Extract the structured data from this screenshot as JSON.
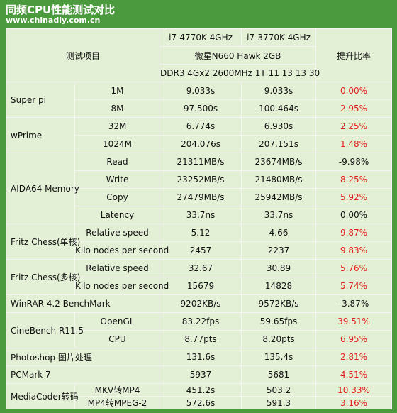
{
  "header": {
    "title": "同频CPU性能测试对比",
    "site": "www.chinadiy.com.cn"
  },
  "table": {
    "item_header": "测试项目",
    "cpu1": "i7-4770K 4GHz",
    "cpu2": "i7-3770K 4GHz",
    "gpu": "微星N660 Hawk 2GB",
    "memory": "DDR3 4Gx2 2600MHz 1T 11 13 13 30",
    "ratio_header": "提升比率",
    "groups": [
      {
        "name": "Super pi",
        "items": [
          {
            "name": "1M",
            "a": "9.033s",
            "b": "9.033s",
            "ratio": "0.00%",
            "red": true
          },
          {
            "name": "8M",
            "a": "97.500s",
            "b": "100.464s",
            "ratio": "2.95%",
            "red": true
          }
        ]
      },
      {
        "name": "wPrime",
        "items": [
          {
            "name": "32M",
            "a": "6.774s",
            "b": "6.930s",
            "ratio": "2.25%",
            "red": true
          },
          {
            "name": "1024M",
            "a": "204.076s",
            "b": "207.151s",
            "ratio": "1.48%",
            "red": true
          }
        ]
      },
      {
        "name": "AIDA64 Memory",
        "items": [
          {
            "name": "Read",
            "a": "21311MB/s",
            "b": "23674MB/s",
            "ratio": "-9.98%",
            "red": false
          },
          {
            "name": "Write",
            "a": "23252MB/s",
            "b": "21480MB/s",
            "ratio": "8.25%",
            "red": true
          },
          {
            "name": "Copy",
            "a": "27479MB/s",
            "b": "25942MB/s",
            "ratio": "5.92%",
            "red": true
          },
          {
            "name": "Latency",
            "a": "33.7ns",
            "b": "33.7ns",
            "ratio": "0.00%",
            "red": false
          }
        ]
      },
      {
        "name": "Fritz Chess(单核)",
        "items": [
          {
            "name": "Relative speed",
            "a": "5.12",
            "b": "4.66",
            "ratio": "9.87%",
            "red": true
          },
          {
            "name": "Kilo nodes per second",
            "a": "2457",
            "b": "2237",
            "ratio": "9.83%",
            "red": true
          }
        ]
      },
      {
        "name": "Fritz Chess(多核)",
        "items": [
          {
            "name": "Relative speed",
            "a": "32.67",
            "b": "30.89",
            "ratio": "5.76%",
            "red": true
          },
          {
            "name": "Kilo nodes per second",
            "a": "15679",
            "b": "14828",
            "ratio": "5.74%",
            "red": true
          }
        ]
      },
      {
        "name": "WinRAR 4.2 BenchMark",
        "items": [
          {
            "a": "9202KB/s",
            "b": "9572KB/s",
            "ratio": "-3.87%",
            "red": false
          }
        ]
      },
      {
        "name": "CineBench R11.5",
        "items": [
          {
            "name": "OpenGL",
            "a": "83.22fps",
            "b": "59.65fps",
            "ratio": "39.51%",
            "red": true
          },
          {
            "name": "CPU",
            "a": "8.77pts",
            "b": "8.20pts",
            "ratio": "6.95%",
            "red": true
          }
        ]
      },
      {
        "name": "Photoshop 图片处理",
        "items": [
          {
            "a": "131.6s",
            "b": "135.4s",
            "ratio": "2.81%",
            "red": true
          }
        ]
      },
      {
        "name": "PCMark 7",
        "items": [
          {
            "a": "5937",
            "b": "5681",
            "ratio": "4.51%",
            "red": true
          }
        ]
      },
      {
        "name": "MediaCoder转码",
        "short": true,
        "items": [
          {
            "name": "MKV转MP4",
            "a": "451.2s",
            "b": "503.2",
            "ratio": "10.33%",
            "red": true
          },
          {
            "name": "MP4转MPEG-2",
            "a": "572.6s",
            "b": "591.3",
            "ratio": "3.16%",
            "red": true
          }
        ]
      }
    ]
  }
}
